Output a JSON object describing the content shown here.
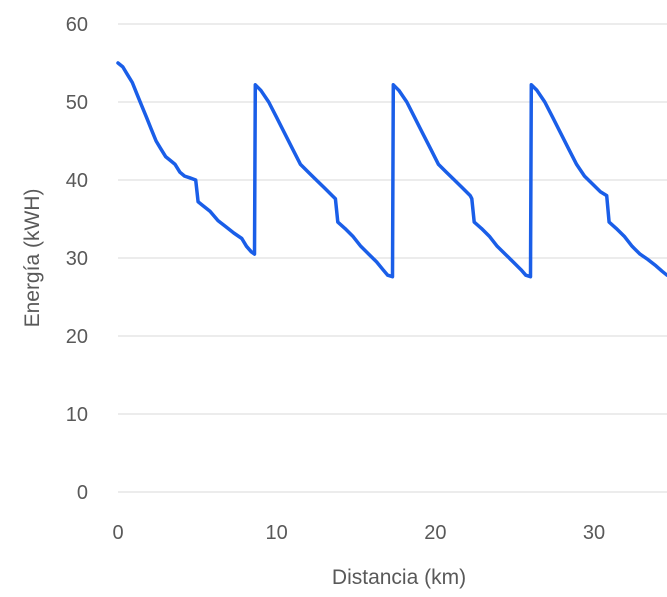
{
  "chart_data": {
    "type": "line",
    "title": "",
    "xlabel": "Distancia (km)",
    "ylabel": "Energía (kWH)",
    "xlim": [
      0,
      34.6
    ],
    "ylim": [
      0,
      60
    ],
    "xticks": [
      0,
      10,
      20,
      30
    ],
    "yticks": [
      0,
      10,
      20,
      30,
      40,
      50,
      60
    ],
    "x_tick_labels": [
      "0",
      "10",
      "20",
      "30"
    ],
    "y_tick_labels": [
      "0",
      "10",
      "20",
      "30",
      "40",
      "50",
      "60"
    ],
    "grid": true,
    "legend": "none",
    "series_color": "#1a5ee8",
    "series": [
      {
        "x": [
          0,
          0.3,
          0.6,
          0.9,
          1.2,
          1.5,
          1.8,
          2.1,
          2.4,
          2.7,
          3.0,
          3.3,
          3.6,
          3.9,
          4.2,
          4.5,
          4.9,
          5.05,
          5.3,
          5.8,
          6.3,
          6.8,
          7.3,
          7.8,
          8.1,
          8.4,
          8.6,
          8.65,
          9.0,
          9.5,
          10.0,
          10.5,
          11.0,
          11.5,
          12.0,
          12.5,
          13.0,
          13.5,
          13.7,
          13.85,
          14.3,
          14.8,
          15.3,
          15.8,
          16.3,
          16.7,
          17.0,
          17.3,
          17.35,
          17.7,
          18.2,
          18.7,
          19.2,
          19.7,
          20.2,
          20.7,
          21.2,
          21.7,
          22.2,
          22.3,
          22.45,
          22.9,
          23.4,
          23.9,
          24.4,
          24.9,
          25.4,
          25.7,
          26.0,
          26.05,
          26.4,
          26.9,
          27.4,
          27.9,
          28.4,
          28.9,
          29.4,
          29.9,
          30.4,
          30.8,
          30.95,
          31.4,
          31.9,
          32.4,
          32.9,
          33.4,
          33.9,
          34.3,
          34.6
        ],
        "y": [
          55.0,
          54.5,
          53.5,
          52.5,
          51.0,
          49.5,
          48.0,
          46.5,
          45.0,
          44.0,
          43.0,
          42.5,
          42.0,
          41.0,
          40.5,
          40.3,
          40.0,
          37.2,
          36.8,
          36.0,
          34.8,
          34.0,
          33.2,
          32.5,
          31.5,
          30.8,
          30.5,
          52.2,
          51.5,
          50.0,
          48.0,
          46.0,
          44.0,
          42.0,
          41.0,
          40.0,
          39.0,
          38.0,
          37.6,
          34.6,
          33.8,
          32.8,
          31.5,
          30.5,
          29.5,
          28.5,
          27.8,
          27.6,
          52.2,
          51.5,
          50.0,
          48.0,
          46.0,
          44.0,
          42.0,
          41.0,
          40.0,
          39.0,
          38.0,
          37.6,
          34.6,
          33.8,
          32.8,
          31.5,
          30.5,
          29.5,
          28.5,
          27.8,
          27.6,
          52.2,
          51.5,
          50.0,
          48.0,
          46.0,
          44.0,
          42.0,
          40.5,
          39.5,
          38.5,
          38.0,
          34.6,
          33.8,
          32.8,
          31.5,
          30.5,
          29.8,
          29.0,
          28.3,
          27.8
        ]
      }
    ]
  }
}
